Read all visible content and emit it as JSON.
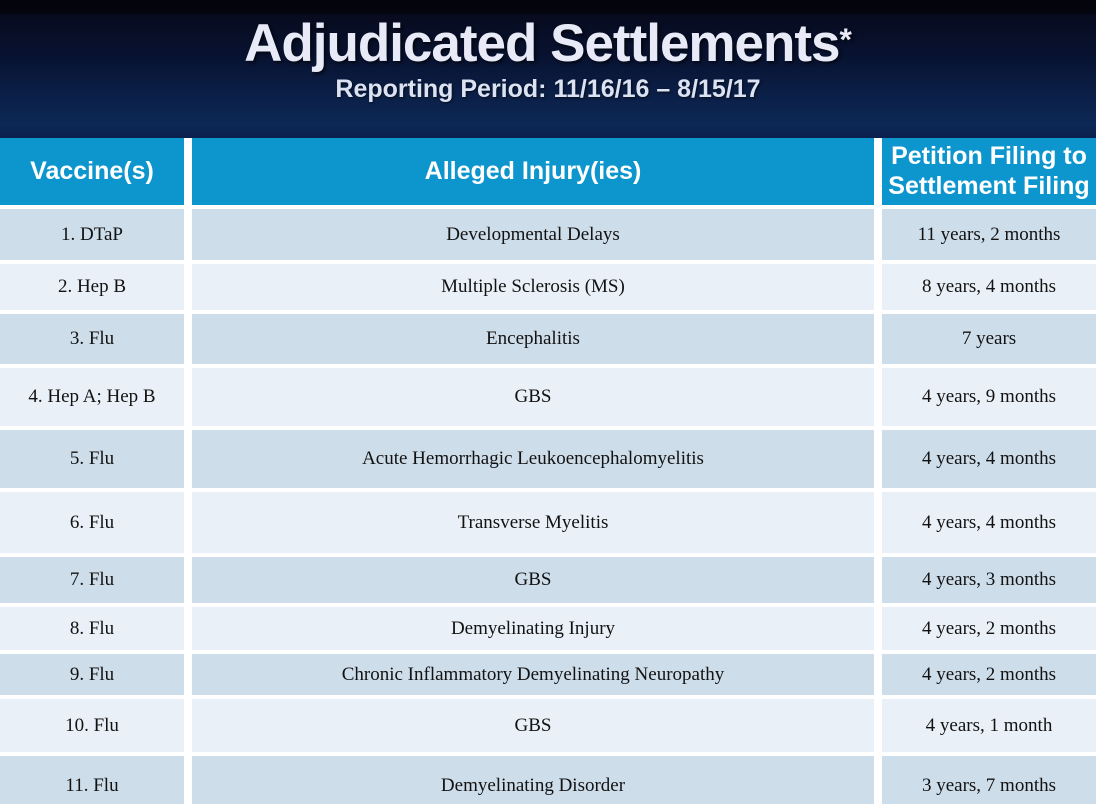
{
  "slide": {
    "title": "Adjudicated Settlements",
    "title_asterisk": "*",
    "subtitle": "Reporting Period: 11/16/16 – 8/15/17"
  },
  "table": {
    "columns": [
      "Vaccine(s)",
      "Alleged Injury(ies)",
      "Petition Filing to Settlement Filing"
    ],
    "rows": [
      {
        "vaccine": "1. DTaP",
        "injury": "Developmental Delays",
        "duration": "11 years, 2 months"
      },
      {
        "vaccine": "2. Hep B",
        "injury": "Multiple Sclerosis (MS)",
        "duration": "8 years, 4 months"
      },
      {
        "vaccine": "3. Flu",
        "injury": "Encephalitis",
        "duration": "7 years"
      },
      {
        "vaccine": "4. Hep A; Hep B",
        "injury": "GBS",
        "duration": "4 years, 9 months"
      },
      {
        "vaccine": "5. Flu",
        "injury": "Acute Hemorrhagic Leukoencephalomyelitis",
        "duration": "4 years, 4 months"
      },
      {
        "vaccine": "6. Flu",
        "injury": "Transverse Myelitis",
        "duration": "4 years, 4 months"
      },
      {
        "vaccine": "7. Flu",
        "injury": "GBS",
        "duration": "4 years, 3 months"
      },
      {
        "vaccine": "8. Flu",
        "injury": "Demyelinating Injury",
        "duration": "4 years, 2 months"
      },
      {
        "vaccine": "9. Flu",
        "injury": "Chronic Inflammatory Demyelinating Neuropathy",
        "duration": "4 years, 2 months"
      },
      {
        "vaccine": "10. Flu",
        "injury": "GBS",
        "duration": "4 years, 1 month"
      },
      {
        "vaccine": "11. Flu",
        "injury": "Demyelinating Disorder",
        "duration": "3 years, 7 months"
      }
    ]
  },
  "colors": {
    "header_gradient_top": "#04040c",
    "header_gradient_bottom": "#0a1f4e",
    "table_header_blue": "#0d96ce",
    "row_dark": "#cdddea",
    "row_light": "#e9f0f7",
    "title_text": "#e8eaf8",
    "cell_gap": "#ffffff"
  }
}
